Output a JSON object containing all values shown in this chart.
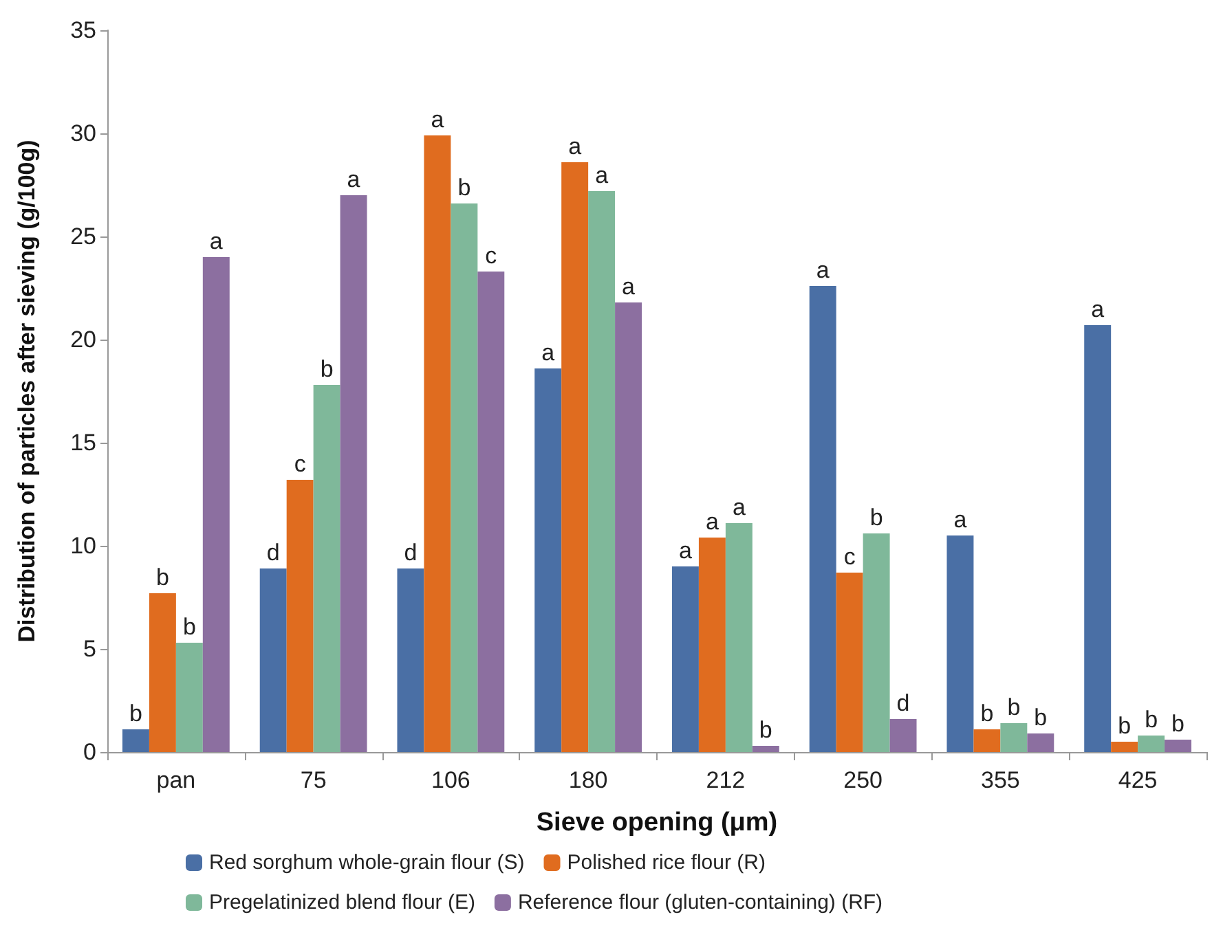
{
  "chart_data": {
    "type": "bar",
    "xlabel": "Sieve opening (μm)",
    "ylabel": "Distribution of particles after sieving (g/100g)",
    "categories": [
      "pan",
      "75",
      "106",
      "180",
      "212",
      "250",
      "355",
      "425"
    ],
    "series": [
      {
        "name": "Red sorghum whole-grain flour (S)",
        "color": "#4a6fa5",
        "values": [
          1.1,
          8.9,
          8.9,
          18.6,
          9.0,
          22.6,
          10.5,
          20.7
        ],
        "value_labels": [
          "b",
          "d",
          "d",
          "a",
          "a",
          "a",
          "a",
          "a"
        ]
      },
      {
        "name": "Polished rice flour (R)",
        "color": "#e06c1f",
        "values": [
          7.7,
          13.2,
          29.9,
          28.6,
          10.4,
          8.7,
          1.1,
          0.5
        ],
        "value_labels": [
          "b",
          "c",
          "a",
          "a",
          "a",
          "c",
          "b",
          "b"
        ]
      },
      {
        "name": "Pregelatinized blend flour (E)",
        "color": "#7fb89a",
        "values": [
          5.3,
          17.8,
          26.6,
          27.2,
          11.1,
          10.6,
          1.4,
          0.8
        ],
        "value_labels": [
          "b",
          "b",
          "b",
          "a",
          "a",
          "b",
          "b",
          "b"
        ]
      },
      {
        "name": "Reference flour (gluten-containing) (RF)",
        "color": "#8c6fa0",
        "values": [
          24.0,
          27.0,
          23.3,
          21.8,
          0.3,
          1.6,
          0.9,
          0.6
        ],
        "value_labels": [
          "a",
          "a",
          "c",
          "a",
          "b",
          "d",
          "b",
          "b"
        ]
      }
    ],
    "ylim": [
      0,
      35
    ],
    "yticks": [
      0,
      5,
      10,
      15,
      20,
      25,
      30,
      35
    ],
    "grid": false,
    "legend": "bottom"
  }
}
